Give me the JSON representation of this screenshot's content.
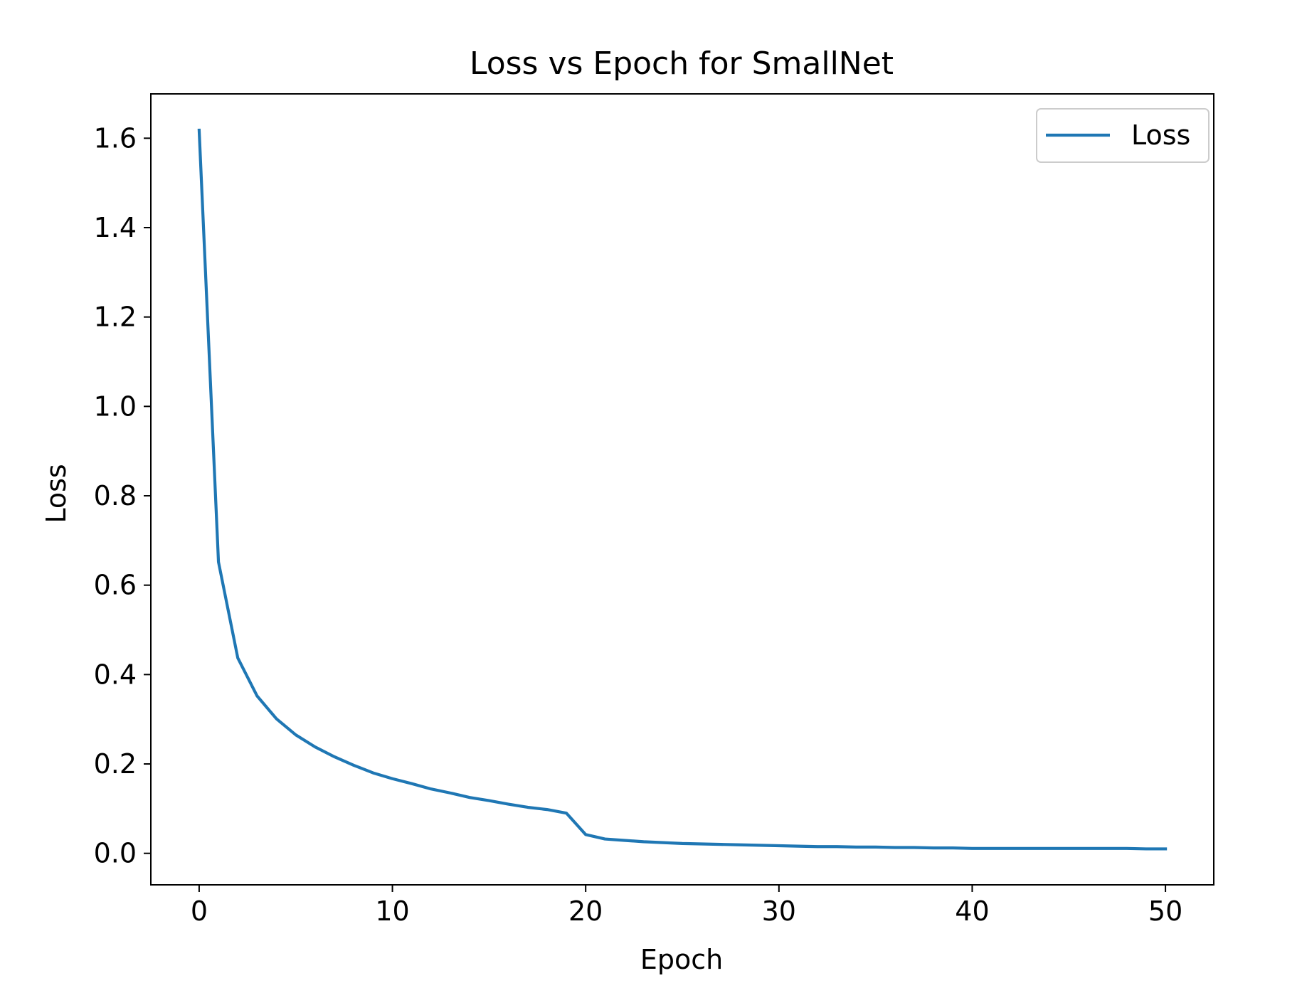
{
  "chart_data": {
    "type": "line",
    "title": "Loss vs Epoch for SmallNet",
    "xlabel": "Epoch",
    "ylabel": "Loss",
    "xlim": [
      -2.5,
      52.5
    ],
    "ylim": [
      -0.0705,
      1.6992
    ],
    "xticks": [
      0,
      10,
      20,
      30,
      40,
      50
    ],
    "xtick_labels": [
      "0",
      "10",
      "20",
      "30",
      "40",
      "50"
    ],
    "yticks": [
      0.0,
      0.2,
      0.4,
      0.6,
      0.8,
      1.0,
      1.2,
      1.4,
      1.6
    ],
    "ytick_labels": [
      "0.0",
      "0.2",
      "0.4",
      "0.6",
      "0.8",
      "1.0",
      "1.2",
      "1.4",
      "1.6"
    ],
    "grid": false,
    "legend": {
      "position": "top-right",
      "entries": [
        "Loss"
      ]
    },
    "series": [
      {
        "name": "Loss",
        "color": "#1f77b4",
        "x": [
          0,
          1,
          2,
          3,
          4,
          5,
          6,
          7,
          8,
          9,
          10,
          11,
          12,
          13,
          14,
          15,
          16,
          17,
          18,
          19,
          20,
          21,
          22,
          23,
          24,
          25,
          26,
          27,
          28,
          29,
          30,
          31,
          32,
          33,
          34,
          35,
          36,
          37,
          38,
          39,
          40,
          41,
          42,
          43,
          44,
          45,
          46,
          47,
          48,
          49,
          50
        ],
        "y": [
          1.618,
          0.652,
          0.437,
          0.352,
          0.301,
          0.265,
          0.238,
          0.216,
          0.197,
          0.18,
          0.167,
          0.156,
          0.144,
          0.135,
          0.125,
          0.118,
          0.11,
          0.103,
          0.098,
          0.09,
          0.042,
          0.032,
          0.029,
          0.026,
          0.024,
          0.022,
          0.021,
          0.02,
          0.019,
          0.018,
          0.017,
          0.016,
          0.015,
          0.015,
          0.014,
          0.014,
          0.013,
          0.013,
          0.012,
          0.012,
          0.011,
          0.011,
          0.011,
          0.011,
          0.011,
          0.011,
          0.011,
          0.011,
          0.011,
          0.01,
          0.01
        ]
      }
    ]
  }
}
